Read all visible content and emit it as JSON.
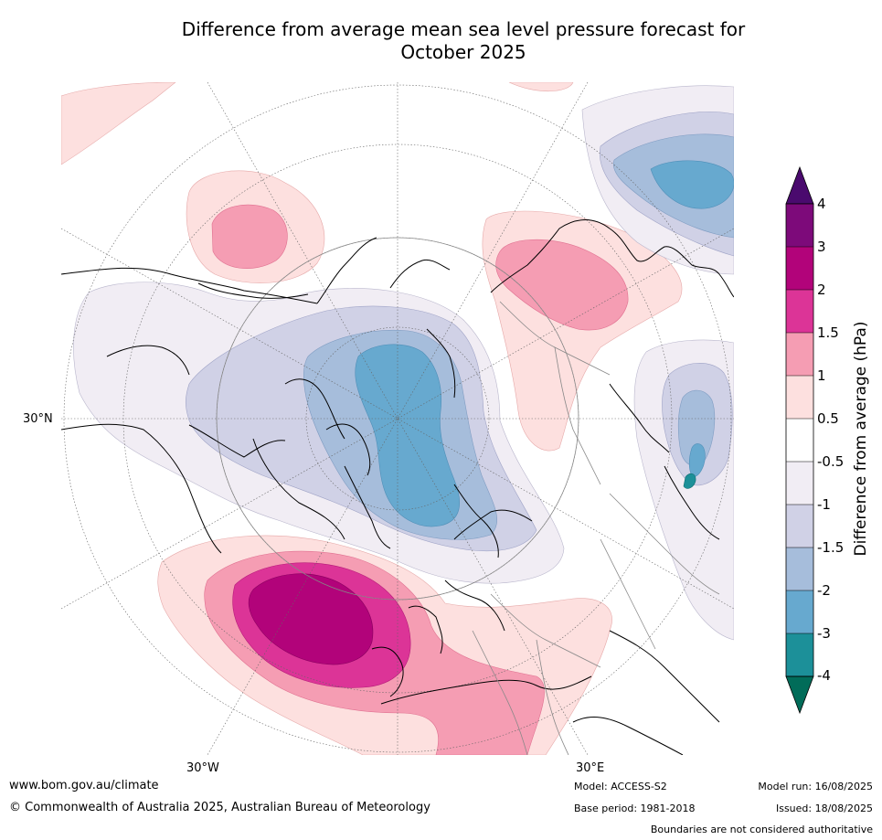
{
  "title_line1": "Difference from average mean sea level pressure forecast for",
  "title_line2": "October 2025",
  "map": {
    "labels": {
      "lat_30n": "30°N",
      "lon_30w": "30°W",
      "lon_30e": "30°E"
    },
    "legend": {
      "title": "Difference from average (hPa)",
      "ticks": [
        "4",
        "3",
        "2",
        "1.5",
        "1",
        "0.5",
        "-0.5",
        "-1",
        "-1.5",
        "-2",
        "-3",
        "-4"
      ],
      "colors": {
        "over": "#4a0a6e",
        "c3_4": "#7d0a7a",
        "c2_3": "#b2037a",
        "c1_5_2": "#dc3497",
        "c1_1_5": "#f59db3",
        "c0_5_1": "#fde0df",
        "c_neg0_5_0_5": "#ffffff",
        "c_neg1_neg0_5": "#f1edf4",
        "c_neg1_5_neg1": "#d0d1e6",
        "c_neg2_neg1_5": "#a6bddb",
        "c_neg3_neg2": "#67a9cf",
        "c_neg4_neg3": "#1c9099",
        "under": "#016c59"
      }
    }
  },
  "footer": {
    "website": "www.bom.gov.au/climate",
    "copyright": "© Commonwealth of Australia 2025, Australian Bureau of Meteorology",
    "model": "Model: ACCESS-S2",
    "base_period": "Base period: 1981-2018",
    "model_run": "Model run: 16/08/2025",
    "issued": "Issued: 18/08/2025",
    "disclaimer": "Boundaries are not considered authoritative"
  }
}
